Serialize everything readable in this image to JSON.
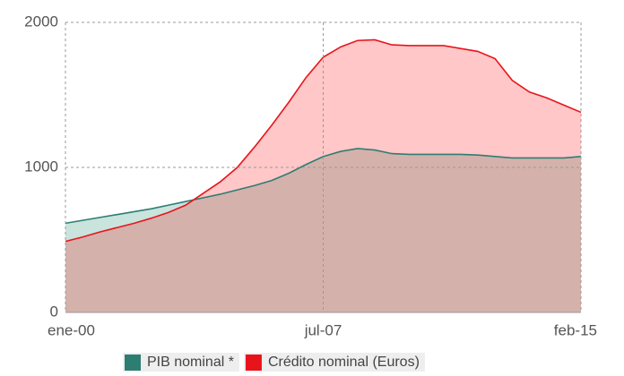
{
  "chart_data": {
    "type": "area",
    "categories": [
      "ene-00",
      null,
      null,
      null,
      null,
      null,
      null,
      null,
      null,
      null,
      null,
      null,
      null,
      null,
      null,
      "jul-07",
      null,
      null,
      null,
      null,
      null,
      null,
      null,
      null,
      null,
      null,
      null,
      null,
      null,
      null,
      "feb-15"
    ],
    "series": [
      {
        "name": "PIB nominal *",
        "color": "#2e7d73",
        "fill": "#c9e3dd",
        "values": [
          615,
          635,
          655,
          675,
          695,
          715,
          740,
          765,
          790,
          815,
          845,
          875,
          910,
          960,
          1020,
          1075,
          1110,
          1130,
          1120,
          1095,
          1090,
          1090,
          1090,
          1090,
          1085,
          1075,
          1065,
          1065,
          1065,
          1065,
          1075
        ]
      },
      {
        "name": "Crédito nominal (Euros)",
        "color": "#e8141b",
        "fill": "#ff0000",
        "values": [
          490,
          520,
          555,
          585,
          615,
          650,
          690,
          740,
          820,
          900,
          1000,
          1140,
          1290,
          1450,
          1620,
          1760,
          1830,
          1875,
          1880,
          1845,
          1840,
          1840,
          1840,
          1820,
          1800,
          1750,
          1600,
          1520,
          1480,
          1430,
          1380
        ]
      }
    ],
    "ylim": [
      0,
      2000
    ],
    "yticks": [
      0,
      1000,
      2000
    ],
    "grid": true,
    "legend": "bottom"
  }
}
